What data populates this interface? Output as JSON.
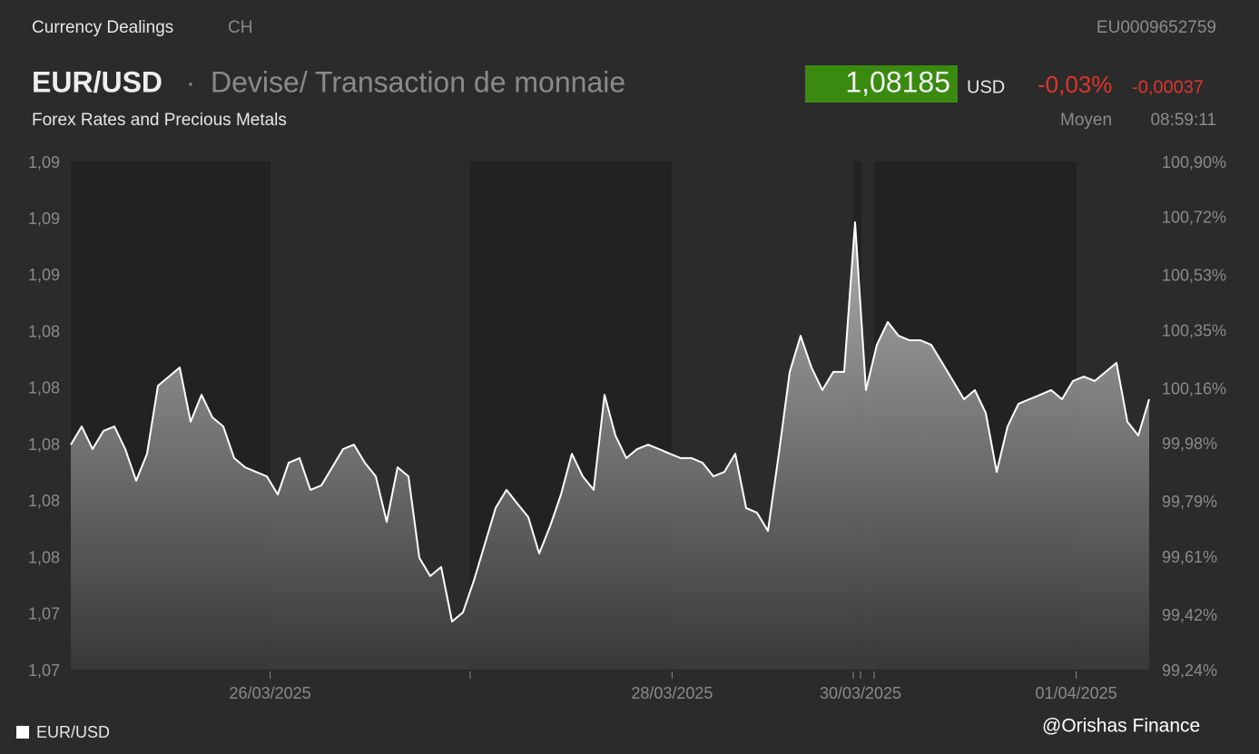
{
  "header": {
    "source": "Currency Dealings",
    "country": "CH",
    "isin": "EU0009652759",
    "symbol": "EUR/USD",
    "separator": "·",
    "description": "Devise/ Transaction de monnaie",
    "price": "1,08185",
    "currency": "USD",
    "change_pct": "-0,03%",
    "change_abs": "-0,00037",
    "subtitle": "Forex Rates and Precious Metals",
    "price_type": "Moyen",
    "time": "08:59:11"
  },
  "watermark": "@Orishas Finance",
  "chart_data": {
    "type": "area",
    "xlim": [
      0,
      99
    ],
    "xticks": [
      {
        "value": 18.3,
        "label": "26/03/2025"
      },
      {
        "value": 55.2,
        "label": "28/03/2025"
      },
      {
        "value": 72.5,
        "label": "30/03/2025"
      },
      {
        "value": 92.3,
        "label": "01/04/2025"
      }
    ],
    "ylim": [
      1.0725,
      1.0887
    ],
    "yticks": [
      {
        "value": 1.0725,
        "label": "1,07"
      },
      {
        "value": 1.0743,
        "label": "1,07"
      },
      {
        "value": 1.0761,
        "label": "1,08"
      },
      {
        "value": 1.0779,
        "label": "1,08"
      },
      {
        "value": 1.0797,
        "label": "1,08"
      },
      {
        "value": 1.0815,
        "label": "1,08"
      },
      {
        "value": 1.0833,
        "label": "1,08"
      },
      {
        "value": 1.0851,
        "label": "1,09"
      },
      {
        "value": 1.0869,
        "label": "1,09"
      },
      {
        "value": 1.0887,
        "label": "1,09"
      }
    ],
    "y2lim": [
      99.24,
      100.9
    ],
    "y2ticks": [
      {
        "value": 99.24,
        "label": "99,24%"
      },
      {
        "value": 99.42,
        "label": "99,42%"
      },
      {
        "value": 99.61,
        "label": "99,61%"
      },
      {
        "value": 99.79,
        "label": "99,79%"
      },
      {
        "value": 99.98,
        "label": "99,98%"
      },
      {
        "value": 100.16,
        "label": "100,16%"
      },
      {
        "value": 100.35,
        "label": "100,35%"
      },
      {
        "value": 100.53,
        "label": "100,53%"
      },
      {
        "value": 100.72,
        "label": "100,72%"
      },
      {
        "value": 100.9,
        "label": "100,90%"
      }
    ],
    "series": [
      {
        "name": "EUR/USD",
        "color": "#ffffff",
        "values": [
          1.07973,
          1.08031,
          1.07959,
          1.08017,
          1.08031,
          1.07959,
          1.07858,
          1.07944,
          1.08161,
          1.0819,
          1.08219,
          1.08046,
          1.08132,
          1.0806,
          1.08031,
          1.0793,
          1.07901,
          1.07886,
          1.07872,
          1.07814,
          1.07915,
          1.0793,
          1.07829,
          1.07843,
          1.07901,
          1.07959,
          1.07973,
          1.07915,
          1.07872,
          1.07727,
          1.07901,
          1.07872,
          1.07612,
          1.07554,
          1.07583,
          1.07409,
          1.07438,
          1.07539,
          1.07655,
          1.07771,
          1.07829,
          1.07785,
          1.07742,
          1.07626,
          1.07713,
          1.07814,
          1.07944,
          1.07872,
          1.07829,
          1.08132,
          1.08002,
          1.0793,
          1.07959,
          1.07973,
          1.07959,
          1.07944,
          1.0793,
          1.0793,
          1.07915,
          1.07872,
          1.07886,
          1.07944,
          1.07771,
          1.07756,
          1.07698,
          1.07944,
          1.08205,
          1.0832,
          1.08219,
          1.08147,
          1.08205,
          1.08205,
          1.08682,
          1.08147,
          1.08291,
          1.08364,
          1.0832,
          1.08306,
          1.08306,
          1.08291,
          1.08234,
          1.08176,
          1.08118,
          1.08147,
          1.08074,
          1.07886,
          1.08031,
          1.08103,
          1.08118,
          1.08132,
          1.08147,
          1.08118,
          1.08176,
          1.0819,
          1.08176,
          1.08205,
          1.08234,
          1.08046,
          1.08002,
          1.08118
        ]
      }
    ]
  }
}
